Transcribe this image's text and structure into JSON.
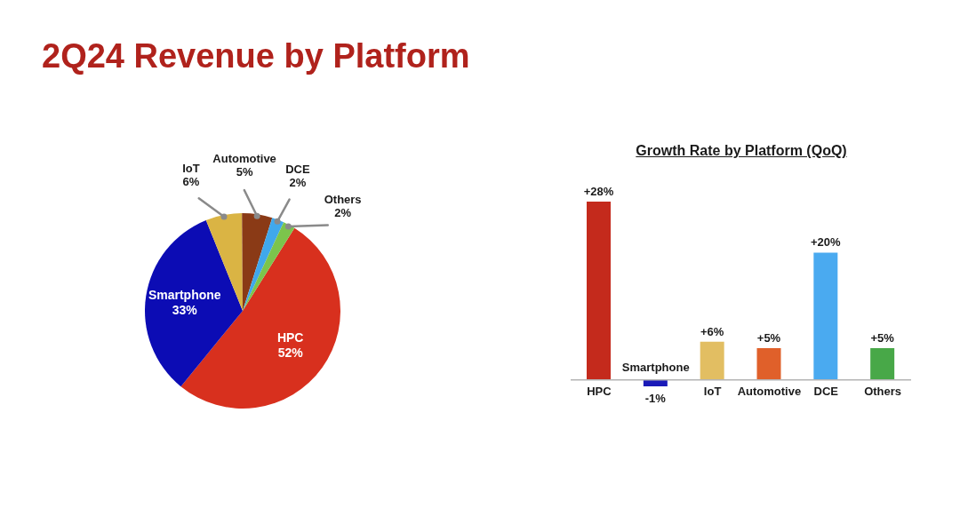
{
  "chart_data": [
    {
      "type": "pie",
      "title": "2Q24 Revenue by Platform",
      "categories": [
        "HPC",
        "Smartphone",
        "IoT",
        "Automotive",
        "DCE",
        "Others"
      ],
      "values": [
        52,
        33,
        6,
        5,
        2,
        2
      ],
      "colors": [
        "#d8301e",
        "#0c0cb4",
        "#dab444",
        "#8a3a16",
        "#40a8ec",
        "#7cc44c"
      ],
      "value_labels": [
        "52%",
        "33%",
        "6%",
        "5%",
        "2%",
        "2%"
      ]
    },
    {
      "type": "bar",
      "title": "Growth Rate by Platform (QoQ)",
      "categories": [
        "HPC",
        "Smartphone",
        "IoT",
        "Automotive",
        "DCE",
        "Others"
      ],
      "values": [
        28,
        -1,
        6,
        5,
        20,
        5
      ],
      "colors": [
        "#c42a1c",
        "#1a1ab8",
        "#e2be62",
        "#e0602a",
        "#4aaaf0",
        "#48a848"
      ],
      "value_labels": [
        "+28%",
        "-1%",
        "+6%",
        "+5%",
        "+20%",
        "+5%"
      ]
    }
  ]
}
